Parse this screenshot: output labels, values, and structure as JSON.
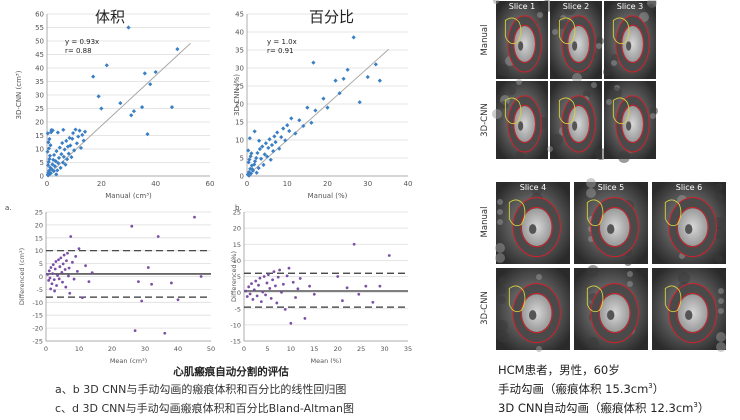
{
  "chart_data": [
    {
      "type": "scatter",
      "panel": "a",
      "title": "体积",
      "xlabel": "Manual (cm³)",
      "ylabel": "3D-CNN (cm³)",
      "xlim": [
        0,
        60
      ],
      "ylim": [
        0,
        60
      ],
      "xticks": [
        "0",
        "20",
        "40",
        "60"
      ],
      "yticks": [
        "0",
        "5",
        "10",
        "15",
        "20",
        "25",
        "30",
        "35",
        "40",
        "45",
        "50",
        "55",
        "60"
      ],
      "annotation_eq": "y = 0.93x",
      "annotation_r": "r= 0.88",
      "fit_line": {
        "slope": 0.93,
        "intercept": 0
      },
      "grid": "horizontal",
      "points": [
        [
          0.3,
          0.5
        ],
        [
          0.5,
          1.2
        ],
        [
          0.8,
          2.0
        ],
        [
          1.0,
          0.8
        ],
        [
          1.2,
          3.1
        ],
        [
          0.4,
          4.0
        ],
        [
          0.6,
          5.2
        ],
        [
          0.9,
          6.3
        ],
        [
          1.1,
          7.5
        ],
        [
          0.2,
          9.0
        ],
        [
          0.7,
          10.2
        ],
        [
          1.3,
          11.4
        ],
        [
          0.5,
          12.5
        ],
        [
          0.9,
          13.7
        ],
        [
          0.3,
          15.8
        ],
        [
          1.5,
          16.2
        ],
        [
          1.8,
          2.5
        ],
        [
          2.0,
          4.3
        ],
        [
          2.3,
          6.0
        ],
        [
          2.6,
          7.8
        ],
        [
          2.9,
          3.6
        ],
        [
          3.2,
          5.5
        ],
        [
          3.5,
          9.2
        ],
        [
          3.8,
          2.1
        ],
        [
          4.1,
          4.8
        ],
        [
          4.4,
          6.7
        ],
        [
          4.7,
          10.5
        ],
        [
          5.0,
          3.0
        ],
        [
          5.3,
          8.1
        ],
        [
          5.6,
          12.2
        ],
        [
          5.9,
          5.0
        ],
        [
          6.2,
          7.1
        ],
        [
          6.5,
          9.8
        ],
        [
          6.8,
          4.2
        ],
        [
          7.1,
          13.0
        ],
        [
          7.4,
          6.2
        ],
        [
          7.7,
          10.9
        ],
        [
          8.0,
          8.3
        ],
        [
          8.3,
          14.1
        ],
        [
          8.6,
          11.3
        ],
        [
          9.0,
          7.0
        ],
        [
          9.3,
          13.8
        ],
        [
          9.6,
          15.9
        ],
        [
          10.0,
          9.5
        ],
        [
          10.5,
          17.2
        ],
        [
          11.0,
          12.1
        ],
        [
          11.5,
          14.6
        ],
        [
          12.0,
          16.8
        ],
        [
          12.5,
          10.4
        ],
        [
          13.0,
          15.2
        ],
        [
          13.5,
          13.1
        ],
        [
          14.0,
          16.4
        ],
        [
          1.6,
          17.0
        ],
        [
          2.1,
          16.9
        ],
        [
          4.0,
          16.1
        ],
        [
          6.0,
          17.1
        ],
        [
          0.4,
          0.2
        ],
        [
          1.4,
          1.0
        ],
        [
          2.5,
          1.8
        ],
        [
          3.4,
          0.6
        ],
        [
          17.0,
          36.8
        ],
        [
          19.0,
          29.5
        ],
        [
          20.0,
          25.0
        ],
        [
          22.0,
          41.0
        ],
        [
          27.0,
          27.0
        ],
        [
          30.0,
          55.0
        ],
        [
          31.0,
          22.5
        ],
        [
          32.0,
          24.0
        ],
        [
          35.0,
          25.5
        ],
        [
          36.0,
          38.0
        ],
        [
          37.0,
          15.5
        ],
        [
          38.0,
          34.0
        ],
        [
          40.0,
          38.5
        ],
        [
          46.0,
          25.5
        ],
        [
          48.0,
          47.0
        ]
      ]
    },
    {
      "type": "scatter",
      "panel": "b",
      "title": "百分比",
      "xlabel": "Manual (%)",
      "ylabel": "3D-CNN (%)",
      "xlim": [
        0,
        40
      ],
      "ylim": [
        0,
        45
      ],
      "xticks": [
        "0",
        "10",
        "20",
        "30",
        "40"
      ],
      "yticks": [
        "0",
        "5",
        "10",
        "15",
        "20",
        "25",
        "30",
        "35",
        "40",
        "45"
      ],
      "annotation_eq": "y = 1.0x",
      "annotation_r": "r= 0.91",
      "fit_line": {
        "slope": 1.0,
        "intercept": 0
      },
      "grid": "horizontal",
      "points": [
        [
          0.2,
          0.4
        ],
        [
          0.5,
          1.1
        ],
        [
          0.8,
          2.0
        ],
        [
          1.0,
          0.7
        ],
        [
          1.2,
          2.9
        ],
        [
          0.4,
          3.8
        ],
        [
          0.6,
          4.6
        ],
        [
          0.9,
          5.5
        ],
        [
          1.1,
          6.3
        ],
        [
          0.3,
          7.1
        ],
        [
          1.5,
          1.5
        ],
        [
          1.8,
          3.2
        ],
        [
          2.0,
          4.1
        ],
        [
          2.3,
          5.0
        ],
        [
          2.6,
          6.4
        ],
        [
          2.9,
          2.2
        ],
        [
          3.2,
          7.5
        ],
        [
          3.5,
          4.8
        ],
        [
          3.8,
          8.2
        ],
        [
          4.1,
          3.1
        ],
        [
          4.4,
          6.0
        ],
        [
          4.7,
          9.1
        ],
        [
          5.0,
          5.4
        ],
        [
          5.3,
          7.8
        ],
        [
          5.6,
          10.2
        ],
        [
          5.9,
          4.5
        ],
        [
          6.2,
          8.6
        ],
        [
          6.5,
          6.9
        ],
        [
          6.8,
          11.0
        ],
        [
          7.1,
          9.4
        ],
        [
          7.5,
          12.1
        ],
        [
          8.0,
          7.6
        ],
        [
          8.5,
          10.8
        ],
        [
          9.0,
          13.2
        ],
        [
          9.5,
          9.9
        ],
        [
          10.0,
          14.1
        ],
        [
          10.5,
          12.5
        ],
        [
          11.0,
          16.0
        ],
        [
          12.0,
          11.8
        ],
        [
          13.0,
          15.5
        ],
        [
          14.0,
          13.9
        ],
        [
          15.0,
          19.0
        ],
        [
          16.0,
          14.8
        ],
        [
          17.0,
          18.2
        ],
        [
          0.7,
          10.5
        ],
        [
          1.9,
          12.4
        ],
        [
          3.0,
          9.8
        ],
        [
          0.5,
          0.1
        ],
        [
          1.3,
          1.9
        ],
        [
          2.4,
          0.9
        ],
        [
          16.5,
          31.5
        ],
        [
          19.0,
          21.5
        ],
        [
          20.0,
          19.0
        ],
        [
          22.0,
          26.5
        ],
        [
          23.0,
          23.0
        ],
        [
          24.0,
          27.0
        ],
        [
          25.0,
          29.5
        ],
        [
          26.5,
          38.5
        ],
        [
          28.0,
          20.5
        ],
        [
          30.0,
          27.5
        ],
        [
          32.0,
          31.0
        ],
        [
          33.0,
          26.5
        ]
      ]
    },
    {
      "type": "scatter",
      "panel": "c",
      "panel_label": "a.",
      "xlabel": "Mean (cm³)",
      "ylabel": "Differenced (cm³)",
      "xlim": [
        0,
        50
      ],
      "ylim": [
        -25,
        25
      ],
      "xticks": [
        "0",
        "10",
        "20",
        "30",
        "40",
        "50"
      ],
      "yticks": [
        "-25",
        "-20",
        "-15",
        "-10",
        "-5",
        "0",
        "5",
        "10",
        "15",
        "20",
        "25"
      ],
      "mean_line": 1.0,
      "limits": [
        10.0,
        -8.0
      ],
      "grid": "horizontal",
      "points": [
        [
          0.5,
          0.8
        ],
        [
          0.8,
          -1.5
        ],
        [
          1.0,
          2.2
        ],
        [
          1.2,
          -0.6
        ],
        [
          1.5,
          3.5
        ],
        [
          1.8,
          -2.8
        ],
        [
          2.0,
          1.1
        ],
        [
          2.2,
          4.6
        ],
        [
          2.5,
          -1.2
        ],
        [
          2.8,
          2.9
        ],
        [
          3.0,
          5.8
        ],
        [
          3.2,
          -3.5
        ],
        [
          3.5,
          0.4
        ],
        [
          3.8,
          6.5
        ],
        [
          4.0,
          -0.9
        ],
        [
          4.2,
          3.8
        ],
        [
          4.5,
          7.2
        ],
        [
          4.8,
          1.6
        ],
        [
          5.0,
          -2.2
        ],
        [
          5.2,
          4.9
        ],
        [
          5.5,
          8.3
        ],
        [
          5.8,
          2.7
        ],
        [
          6.0,
          -4.1
        ],
        [
          6.2,
          6.1
        ],
        [
          6.5,
          9.0
        ],
        [
          6.8,
          0.2
        ],
        [
          7.0,
          3.3
        ],
        [
          7.2,
          -6.5
        ],
        [
          7.5,
          15.5
        ],
        [
          8.0,
          5.5
        ],
        [
          8.5,
          -1.0
        ],
        [
          9.0,
          7.8
        ],
        [
          9.5,
          2.0
        ],
        [
          10.0,
          10.8
        ],
        [
          11.0,
          -8.2
        ],
        [
          12.0,
          4.2
        ],
        [
          13.0,
          -2.0
        ],
        [
          14.0,
          1.5
        ],
        [
          1.4,
          -4.8
        ],
        [
          2.6,
          -5.6
        ],
        [
          26.0,
          19.5
        ],
        [
          27.0,
          -21.0
        ],
        [
          28.0,
          -2.0
        ],
        [
          29.0,
          -9.5
        ],
        [
          31.0,
          3.5
        ],
        [
          32.0,
          -3.0
        ],
        [
          34.0,
          15.5
        ],
        [
          36.0,
          -22.0
        ],
        [
          38.0,
          -2.5
        ],
        [
          40.0,
          -9.0
        ],
        [
          45.0,
          23.0
        ],
        [
          47.0,
          0.0
        ]
      ]
    },
    {
      "type": "scatter",
      "panel": "d",
      "panel_label": "b.",
      "xlabel": "Mean (%)",
      "ylabel": "Differenced (%)",
      "xlim": [
        0,
        35
      ],
      "ylim": [
        -15,
        25
      ],
      "xticks": [
        "0",
        "5",
        "10",
        "15",
        "20",
        "25",
        "30",
        "35"
      ],
      "yticks": [
        "-15",
        "-10",
        "-5",
        "0",
        "5",
        "10",
        "15",
        "20",
        "25"
      ],
      "mean_line": 0.5,
      "limits": [
        6.0,
        -4.5
      ],
      "grid": "horizontal",
      "points": [
        [
          0.4,
          0.5
        ],
        [
          0.7,
          -1.2
        ],
        [
          1.0,
          1.8
        ],
        [
          1.3,
          -0.4
        ],
        [
          1.6,
          2.8
        ],
        [
          1.9,
          -2.1
        ],
        [
          2.2,
          0.9
        ],
        [
          2.5,
          3.6
        ],
        [
          2.8,
          -1.0
        ],
        [
          3.1,
          2.3
        ],
        [
          3.4,
          4.5
        ],
        [
          3.7,
          -2.8
        ],
        [
          4.0,
          0.2
        ],
        [
          4.3,
          5.0
        ],
        [
          4.6,
          -0.7
        ],
        [
          4.9,
          3.0
        ],
        [
          5.2,
          5.6
        ],
        [
          5.5,
          1.3
        ],
        [
          5.8,
          -1.8
        ],
        [
          6.1,
          4.0
        ],
        [
          6.4,
          6.5
        ],
        [
          6.7,
          2.1
        ],
        [
          7.0,
          -3.2
        ],
        [
          7.3,
          4.8
        ],
        [
          7.6,
          7.0
        ],
        [
          8.0,
          0.1
        ],
        [
          8.4,
          2.6
        ],
        [
          8.8,
          -5.2
        ],
        [
          9.2,
          5.2
        ],
        [
          9.6,
          7.6
        ],
        [
          10.0,
          -9.5
        ],
        [
          10.5,
          3.2
        ],
        [
          11.0,
          -1.5
        ],
        [
          11.5,
          1.2
        ],
        [
          12.0,
          4.4
        ],
        [
          13.0,
          -8.0
        ],
        [
          14.0,
          2.0
        ],
        [
          15.0,
          -0.5
        ],
        [
          20.0,
          5.0
        ],
        [
          21.0,
          -2.5
        ],
        [
          22.0,
          1.5
        ],
        [
          23.5,
          15.0
        ],
        [
          24.5,
          -0.5
        ],
        [
          26.0,
          2.0
        ],
        [
          27.5,
          -3.0
        ],
        [
          29.0,
          2.0
        ],
        [
          31.0,
          11.5
        ]
      ]
    }
  ],
  "captions": {
    "title": "心肌瘢痕自动分割的评估",
    "line1": "a、b 3D CNN与手动勾画的瘢痕体积和百分比的线性回归图",
    "line2": "c、d 3D CNN与手动勾画瘢痕体积和百分比Bland-Altman图"
  },
  "mri": {
    "row_manual": "Manual",
    "row_cnn": "3D-CNN",
    "slices_top": [
      "Slice 1",
      "Slice 2",
      "Slice 3"
    ],
    "slices_bottom": [
      "Slice 4",
      "Slice 5",
      "Slice 6"
    ],
    "label_color": "#ffffff",
    "contour_color": "#d4202a",
    "scar_color": "#d8d23a"
  },
  "patient": {
    "line1": "HCM患者，男性，60岁",
    "line2_pre": "手动勾画（瘢痕体积 15.3cm",
    "line2_sup": "3",
    "line2_post": "）",
    "line3_pre": "3D CNN自动勾画（瘢痕体积 12.3cm",
    "line3_sup": "3",
    "line3_post": "）"
  },
  "colors": {
    "point": "#3b7fc4",
    "fit_line": "#a8a8a8",
    "grid": "#dddddd",
    "axis_text": "#555555",
    "mean_line": "#333333"
  }
}
